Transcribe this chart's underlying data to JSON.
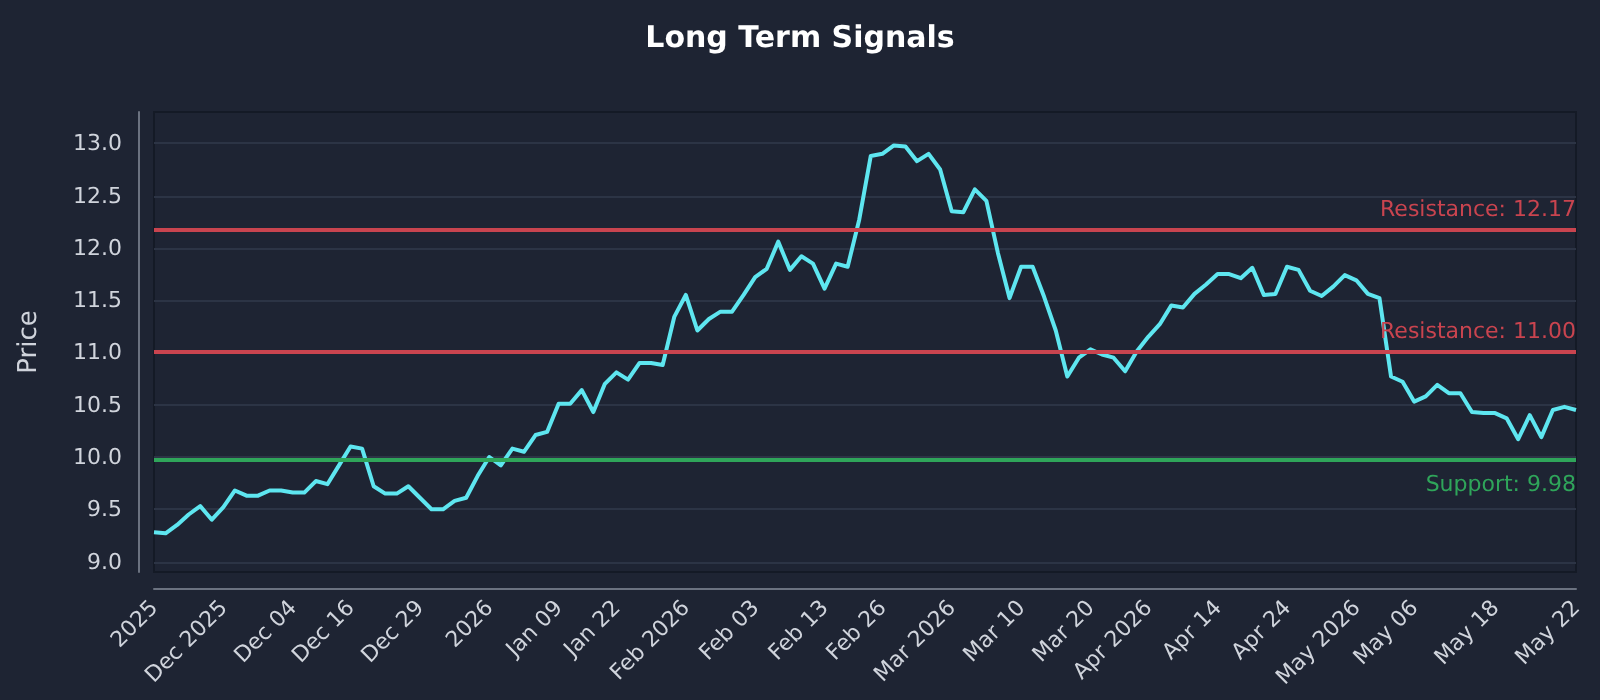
{
  "chart_data": {
    "type": "line",
    "title": "Long Term Signals",
    "ylabel": "Price",
    "categories": [
      "2025",
      null,
      null,
      null,
      null,
      null,
      "Dec 2025",
      null,
      null,
      null,
      null,
      null,
      "Dec 04",
      null,
      null,
      null,
      null,
      "Dec 16",
      null,
      null,
      null,
      null,
      null,
      "Dec 29",
      null,
      null,
      null,
      null,
      null,
      "2026",
      null,
      null,
      null,
      null,
      null,
      "Jan 09",
      null,
      null,
      null,
      null,
      "Jan 22",
      null,
      null,
      null,
      null,
      null,
      "Feb 2026",
      null,
      null,
      null,
      null,
      null,
      "Feb 03",
      null,
      null,
      null,
      null,
      null,
      "Feb 13",
      null,
      null,
      null,
      null,
      "Feb 26",
      null,
      null,
      null,
      null,
      null,
      "Mar 2026",
      null,
      null,
      null,
      null,
      null,
      "Mar 10",
      null,
      null,
      null,
      null,
      null,
      "Mar 20",
      null,
      null,
      null,
      null,
      "Apr 2026",
      null,
      null,
      null,
      null,
      null,
      "Apr 14",
      null,
      null,
      null,
      null,
      null,
      "Apr 24",
      null,
      null,
      null,
      null,
      null,
      "May 2026",
      null,
      null,
      null,
      null,
      "May 06",
      null,
      null,
      null,
      null,
      null,
      null,
      "May 18",
      null,
      null,
      null,
      null,
      null,
      null,
      "May 22"
    ],
    "series": [
      {
        "color": "#5ee6f0",
        "values": [
          9.28,
          9.27,
          9.35,
          9.45,
          9.53,
          9.4,
          9.52,
          9.68,
          9.63,
          9.63,
          9.68,
          9.68,
          9.66,
          9.66,
          9.77,
          9.74,
          9.92,
          10.1,
          10.08,
          9.72,
          9.65,
          9.65,
          9.72,
          9.61,
          9.5,
          9.5,
          9.58,
          9.61,
          9.82,
          10.0,
          9.92,
          10.08,
          10.05,
          10.21,
          10.24,
          10.51,
          10.51,
          10.64,
          10.43,
          10.7,
          10.81,
          10.74,
          10.9,
          10.9,
          10.88,
          11.34,
          11.55,
          11.21,
          11.32,
          11.39,
          11.39,
          11.55,
          11.72,
          11.8,
          12.06,
          11.79,
          11.92,
          11.85,
          11.61,
          11.85,
          11.82,
          12.27,
          12.88,
          12.9,
          12.98,
          12.97,
          12.83,
          12.9,
          12.75,
          12.35,
          12.34,
          12.56,
          12.45,
          11.95,
          11.52,
          11.82,
          11.82,
          11.53,
          11.21,
          10.77,
          10.95,
          11.03,
          10.98,
          10.95,
          10.82,
          11.01,
          11.15,
          11.27,
          11.45,
          11.43,
          11.56,
          11.65,
          11.75,
          11.75,
          11.71,
          11.81,
          11.55,
          11.56,
          11.82,
          11.79,
          11.59,
          11.54,
          11.63,
          11.74,
          11.69,
          11.56,
          11.52,
          10.77,
          10.72,
          10.53,
          10.58,
          10.69,
          10.61,
          10.61,
          10.43,
          10.42,
          10.42,
          10.37,
          10.17,
          10.4,
          10.19,
          10.45,
          10.48,
          10.45
        ]
      }
    ],
    "ylim": [
      8.9,
      13.3
    ],
    "yticks": [
      {
        "value": 9,
        "label": "9.0"
      },
      9.5,
      {
        "value": 10,
        "label": "10.0"
      },
      10.5,
      {
        "value": 11,
        "label": "11.0"
      },
      11.5,
      {
        "value": 12,
        "label": "12.0"
      },
      12.5,
      {
        "value": 13,
        "label": "13.0"
      }
    ],
    "ref_lines": [
      {
        "axis": "y",
        "value": 12.17,
        "label": "Resistance: 12.17",
        "color": "#c9444f"
      },
      {
        "axis": "y",
        "value": 11.0,
        "label": "Resistance: 11.00",
        "color": "#c9444f"
      },
      {
        "axis": "y",
        "value": 9.98,
        "label": "Support: 9.98",
        "color": "#2fa55a"
      }
    ],
    "grid": "y",
    "marker": "none",
    "line_style": "solid"
  }
}
